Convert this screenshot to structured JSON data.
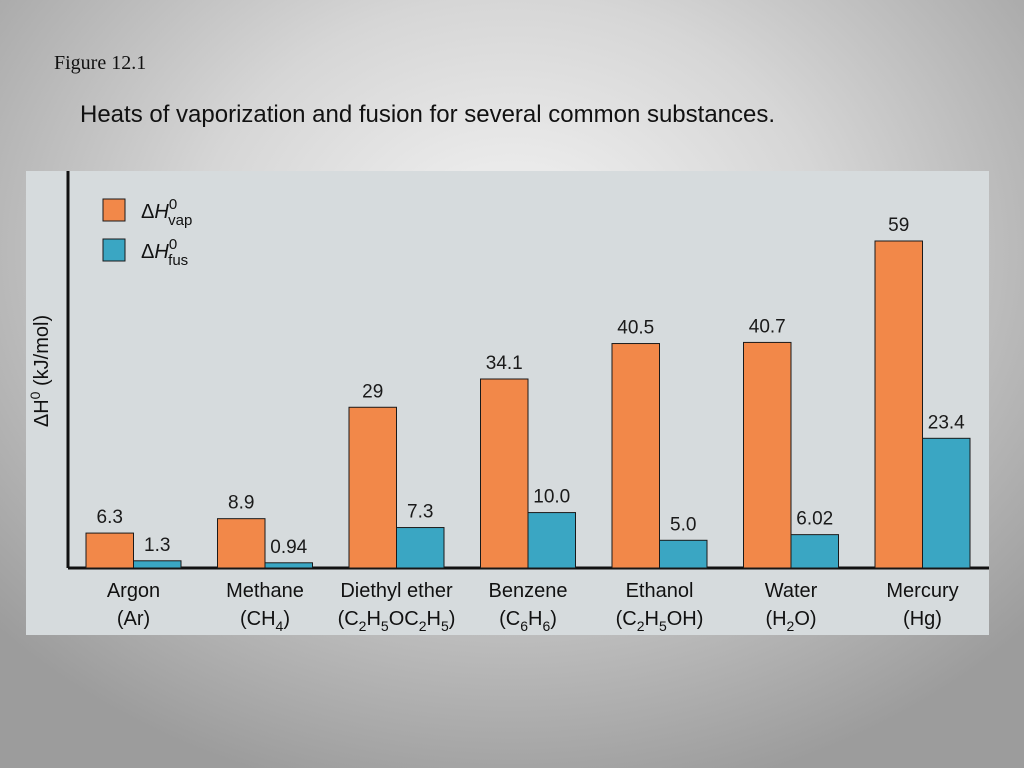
{
  "figure_label": "Figure 12.1",
  "title": "Heats of vaporization and fusion for several common substances.",
  "colors": {
    "vap": "#f28849",
    "fus": "#3aa6c3",
    "axis": "#111111"
  },
  "chart_data": {
    "type": "bar",
    "ylabel": {
      "main": "ΔH",
      "sup": "0",
      "unit": " (kJ/mol)"
    },
    "ylim": [
      0,
      62
    ],
    "categories": [
      {
        "name": "Argon",
        "formula": [
          [
            "(Ar)",
            ""
          ]
        ]
      },
      {
        "name": "Methane",
        "formula": [
          [
            "(CH",
            ""
          ],
          [
            "4",
            "sub"
          ],
          [
            ")",
            ""
          ]
        ]
      },
      {
        "name": "Diethyl ether",
        "formula": [
          [
            "(C",
            ""
          ],
          [
            "2",
            "sub"
          ],
          [
            "H",
            ""
          ],
          [
            "5",
            "sub"
          ],
          [
            "OC",
            ""
          ],
          [
            "2",
            "sub"
          ],
          [
            "H",
            ""
          ],
          [
            "5",
            "sub"
          ],
          [
            ")",
            ""
          ]
        ]
      },
      {
        "name": "Benzene",
        "formula": [
          [
            "(C",
            ""
          ],
          [
            "6",
            "sub"
          ],
          [
            "H",
            ""
          ],
          [
            "6",
            "sub"
          ],
          [
            ")",
            ""
          ]
        ]
      },
      {
        "name": "Ethanol",
        "formula": [
          [
            "(C",
            ""
          ],
          [
            "2",
            "sub"
          ],
          [
            "H",
            ""
          ],
          [
            "5",
            "sub"
          ],
          [
            "OH)",
            ""
          ]
        ]
      },
      {
        "name": "Water",
        "formula": [
          [
            "(H",
            ""
          ],
          [
            "2",
            "sub"
          ],
          [
            "O)",
            ""
          ]
        ]
      },
      {
        "name": "Mercury",
        "formula": [
          [
            "(Hg)",
            ""
          ]
        ]
      }
    ],
    "series": [
      {
        "key": "vap",
        "legend_main": "ΔH",
        "legend_sup": "0",
        "legend_sub": "vap",
        "values": [
          6.3,
          8.9,
          29,
          34.1,
          40.5,
          40.7,
          59
        ],
        "labels": [
          "6.3",
          "8.9",
          "29",
          "34.1",
          "40.5",
          "40.7",
          "59"
        ]
      },
      {
        "key": "fus",
        "legend_main": "ΔH",
        "legend_sup": "0",
        "legend_sub": "fus",
        "values": [
          1.3,
          0.94,
          7.3,
          10.0,
          5.0,
          6.02,
          23.4
        ],
        "labels": [
          "1.3",
          "0.94",
          "7.3",
          "10.0",
          "5.0",
          "6.02",
          "23.4"
        ]
      }
    ],
    "grid": false,
    "legend_position": "top-left"
  }
}
